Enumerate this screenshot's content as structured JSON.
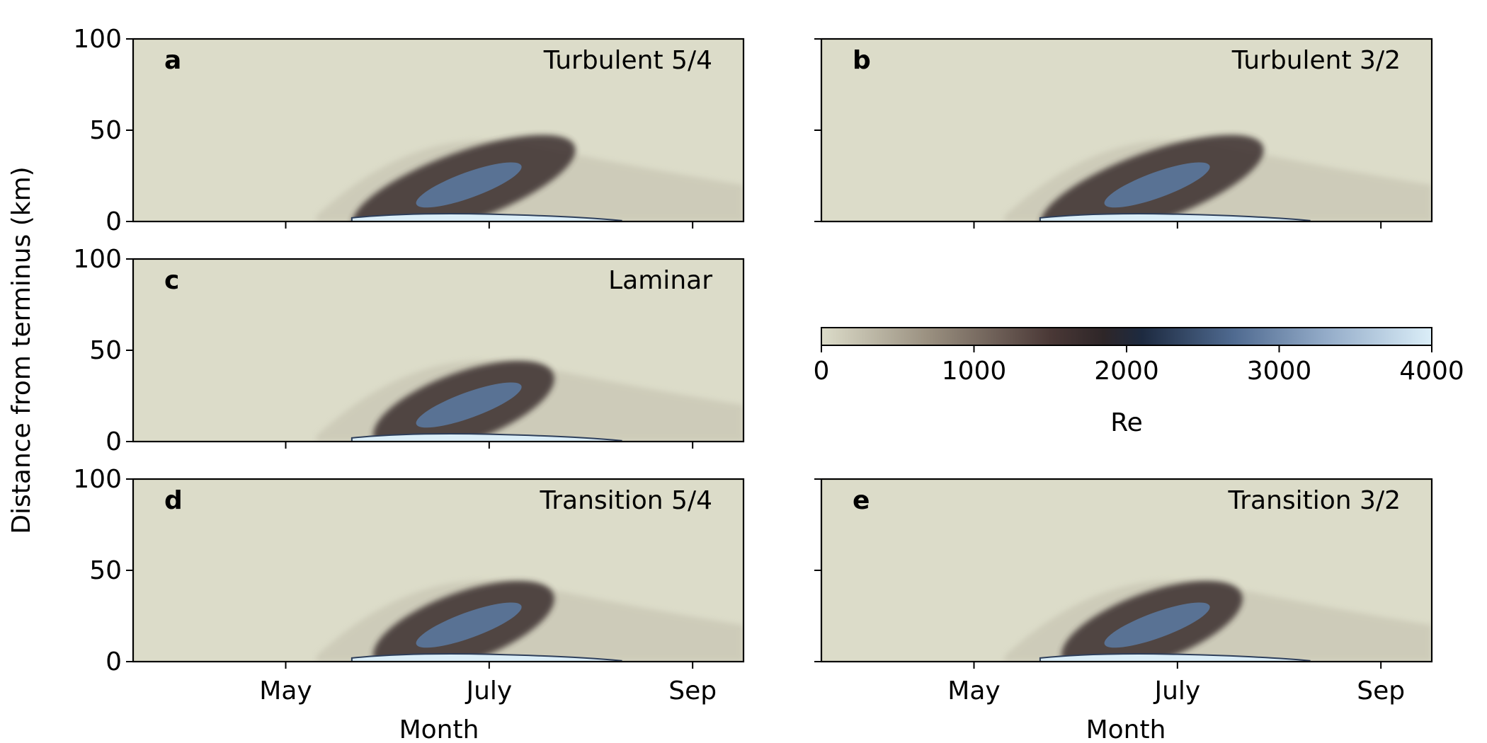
{
  "chart_data": {
    "type": "heatmap",
    "ylabel": "Distance from terminus (km)",
    "xlabel": "Month",
    "xlim_months": [
      3.5,
      9.5
    ],
    "x_ticks": [
      {
        "label": "May",
        "month": 5
      },
      {
        "label": "July",
        "month": 7
      },
      {
        "label": "Sep",
        "month": 9
      }
    ],
    "ylim": [
      0,
      100
    ],
    "y_ticks": [
      0,
      50,
      100
    ],
    "colorbar": {
      "label": "Re",
      "range": [
        0,
        4000
      ],
      "ticks": [
        0,
        1000,
        2000,
        3000,
        4000
      ],
      "colors": [
        {
          "value": 0,
          "color": "#dcdcc9"
        },
        {
          "value": 700,
          "color": "#9a9080"
        },
        {
          "value": 1500,
          "color": "#4a3836"
        },
        {
          "value": 1850,
          "color": "#2e2628"
        },
        {
          "value": 2100,
          "color": "#1d2a40"
        },
        {
          "value": 2700,
          "color": "#4f6a90"
        },
        {
          "value": 3300,
          "color": "#93abc8"
        },
        {
          "value": 4000,
          "color": "#dbeef8"
        }
      ]
    },
    "panels": [
      {
        "id": "a",
        "label": "a",
        "title": "Turbulent 5/4",
        "wake_width": 2.6,
        "near_terminus_band": 4000
      },
      {
        "id": "b",
        "label": "b",
        "title": "Turbulent 3/2",
        "wake_width": 2.6,
        "near_terminus_band": 4000
      },
      {
        "id": "c",
        "label": "c",
        "title": "Laminar",
        "wake_width": 1.0,
        "near_terminus_band": 4000
      },
      {
        "id": "d",
        "label": "d",
        "title": "Transition 5/4",
        "wake_width": 1.0,
        "near_terminus_band": 4000
      },
      {
        "id": "e",
        "label": "e",
        "title": "Transition 3/2",
        "wake_width": 1.0,
        "near_terminus_band": 4000
      }
    ]
  }
}
